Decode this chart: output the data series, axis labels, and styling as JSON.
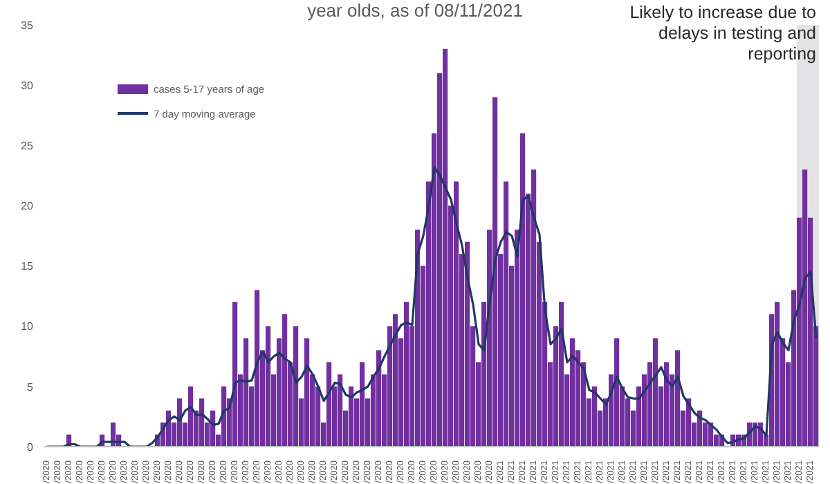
{
  "chart_data": {
    "type": "bar",
    "title": "year olds, as of 08/11/2021",
    "annotations": [
      "Likely to increase due to delays in testing and reporting"
    ],
    "categories": [
      "/2020",
      null,
      "/2020",
      null,
      "/2020",
      null,
      "/2020",
      null,
      "/2020",
      null,
      "/2020",
      null,
      "/2020",
      null,
      "/2020",
      null,
      "/2020",
      null,
      "/2020",
      null,
      "/2020",
      null,
      "/2020",
      null,
      "/2020",
      null,
      "/2020",
      null,
      "/2020",
      null,
      "/2020",
      null,
      "/2020",
      null,
      "/2020",
      null,
      "/2020",
      null,
      "/2020",
      null,
      "/2020",
      null,
      "/2020",
      null,
      "/2020",
      null,
      "/2020",
      null,
      "/2020",
      null,
      "/2020",
      null,
      "/2020",
      null,
      "/2020",
      null,
      "/2020",
      null,
      "/2020",
      null,
      "/2020",
      null,
      "/2020",
      null,
      "/2020",
      null,
      "/2020",
      null,
      "/2020",
      null,
      "/2020",
      null,
      "/2020",
      null,
      "/2020",
      null,
      "/2020",
      null,
      "/2020",
      null,
      "/2020",
      null,
      "/2021",
      null,
      "/2021",
      null,
      "/2021",
      null,
      "/2021",
      null,
      "/2021",
      null,
      "/2021",
      null,
      "/2021",
      null,
      "/2021",
      null,
      "/2021",
      null,
      "/2021",
      null,
      "/2021",
      null,
      "/2021",
      null,
      "/2021",
      null,
      "/2021",
      null,
      "/2021",
      null,
      "/2021",
      null,
      "/2021",
      null,
      "/2021",
      null,
      "/2021",
      null,
      "/2021",
      null,
      "/2021",
      null,
      "/2021",
      null,
      "/2021",
      null,
      "/2021",
      null,
      "/2021",
      null,
      "/2021",
      null,
      "/2021",
      null,
      "/2021",
      null,
      "/2021",
      null
    ],
    "series": [
      {
        "name": "cases 5-17 years of age",
        "color": "#7030a0",
        "values": [
          0,
          0,
          0,
          0,
          1,
          0,
          0,
          0,
          0,
          0,
          1,
          0,
          2,
          1,
          0,
          0,
          0,
          0,
          0,
          0,
          1,
          2,
          3,
          2,
          4,
          2,
          5,
          3,
          4,
          2,
          3,
          1,
          5,
          4,
          12,
          6,
          9,
          5,
          13,
          8,
          10,
          6,
          9,
          11,
          7,
          10,
          4,
          9,
          6,
          5,
          2,
          7,
          5,
          6,
          3,
          5,
          4,
          7,
          4,
          6,
          8,
          6,
          10,
          11,
          9,
          12,
          10,
          18,
          15,
          22,
          26,
          31,
          33,
          20,
          22,
          16,
          17,
          10,
          7,
          12,
          18,
          29,
          16,
          22,
          15,
          18,
          26,
          21,
          23,
          17,
          12,
          7,
          10,
          12,
          6,
          9,
          8,
          7,
          4,
          5,
          3,
          4,
          6,
          9,
          5,
          4,
          3,
          5,
          6,
          7,
          9,
          5,
          7,
          6,
          8,
          3,
          4,
          2,
          3,
          2,
          2,
          1,
          1,
          0,
          1,
          1,
          1,
          2,
          2,
          2,
          1,
          11,
          12,
          9,
          7,
          13,
          19,
          23,
          19,
          10
        ]
      },
      {
        "name": "7 day moving average",
        "type": "line",
        "color": "#1f3864",
        "values": [
          0,
          0,
          0,
          0,
          0.2,
          0.2,
          0,
          0,
          0,
          0,
          0.4,
          0.4,
          0.4,
          0.4,
          0.4,
          0,
          0,
          0,
          0,
          0.3,
          0.8,
          1.5,
          2.2,
          2.5,
          2.2,
          3,
          3.3,
          2.6,
          2.7,
          2.3,
          1.8,
          1.9,
          3,
          3.2,
          5.3,
          5.5,
          5.4,
          5.5,
          7,
          7.9,
          7,
          7.5,
          7.8,
          7.3,
          7,
          5.3,
          5.8,
          6.7,
          6,
          5,
          3.8,
          4.5,
          5.3,
          5.2,
          4.3,
          4.1,
          4.5,
          4.7,
          5,
          5.8,
          6.5,
          7.5,
          8.4,
          9.3,
          10.1,
          10.3,
          10.1,
          16,
          17.5,
          20,
          23.2,
          22.5,
          21.5,
          20.5,
          18.5,
          16.7,
          14,
          11.8,
          8.5,
          8,
          12,
          15.5,
          17,
          17.8,
          17.5,
          15.8,
          20.5,
          20.8,
          19,
          17.6,
          11.3,
          8.5,
          9,
          9.8,
          7,
          7.5,
          7,
          6.5,
          4.7,
          4.5,
          4,
          3.5,
          4.5,
          5.8,
          4.8,
          4.1,
          4,
          4,
          4.6,
          5.3,
          5.9,
          6.6,
          5.5,
          5,
          5.8,
          4.2,
          3.5,
          2.8,
          2.4,
          2.2,
          1.8,
          1.4,
          0.8,
          0.3,
          0.4,
          0.6,
          0.7,
          1.2,
          1.7,
          1.5,
          0.9,
          8.5,
          9.5,
          8.6,
          8,
          10.5,
          11.8,
          14,
          14.5,
          9
        ]
      }
    ],
    "ylim": [
      0,
      35
    ],
    "yticks": [
      0,
      5,
      10,
      15,
      20,
      25,
      30,
      35
    ],
    "legend": "top left",
    "marker": "none",
    "line_style": "solid"
  }
}
